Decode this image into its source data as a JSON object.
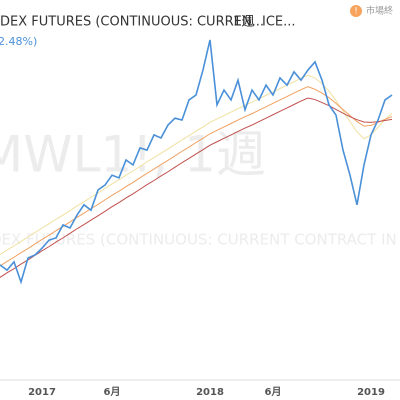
{
  "header": {
    "symbol": "DEX FUTURES (CONTINUOUS: CURREN...",
    "interval": "1週",
    "exchange": "ICE...",
    "change": "2.48%)",
    "status": "市場終"
  },
  "watermark": {
    "ticker": "MWL1!, 1週",
    "description": "DEX FUTURES (CONTINUOUS: CURRENT CONTRACT IN F"
  },
  "chart_data": {
    "type": "line",
    "categories": [
      null,
      null,
      null,
      null,
      null,
      null,
      "2017",
      null,
      null,
      null,
      null,
      null,
      null,
      null,
      null,
      null,
      "6月",
      null,
      null,
      null,
      null,
      null,
      null,
      null,
      null,
      null,
      null,
      null,
      null,
      null,
      "2018",
      null,
      null,
      null,
      null,
      null,
      null,
      null,
      null,
      "6月",
      null,
      null,
      null,
      null,
      null,
      null,
      null,
      null,
      null,
      null,
      null,
      null,
      null,
      "2019",
      null,
      null,
      null
    ],
    "ylim": [
      0,
      100
    ],
    "series": [
      {
        "color": "#f0e0a0",
        "values": [
          33.0,
          34.2,
          35.3,
          36.5,
          37.6,
          38.8,
          40.0,
          41.1,
          42.3,
          43.4,
          44.6,
          45.8,
          46.9,
          48.1,
          49.2,
          50.4,
          51.6,
          52.7,
          53.9,
          55.0,
          56.2,
          57.4,
          58.5,
          59.7,
          60.8,
          62.0,
          63.2,
          64.3,
          65.5,
          66.6,
          67.8,
          68.7,
          69.6,
          70.5,
          71.4,
          72.3,
          73.1,
          74.0,
          74.9,
          75.8,
          76.7,
          77.6,
          78.5,
          79.4,
          80.2,
          79.5,
          78.0,
          76.0,
          73.5,
          70.8,
          68.0,
          65.3,
          63.5,
          64.5,
          66.5,
          68.5,
          70.2
        ]
      },
      {
        "color": "#f0a060",
        "values": [
          30.0,
          31.2,
          32.3,
          33.5,
          34.6,
          35.8,
          37.0,
          38.1,
          39.3,
          40.4,
          41.6,
          42.8,
          43.9,
          45.1,
          46.2,
          47.4,
          48.6,
          49.7,
          50.9,
          52.0,
          53.2,
          54.4,
          55.5,
          56.7,
          57.8,
          59.0,
          60.2,
          61.3,
          62.5,
          63.6,
          64.8,
          65.7,
          66.6,
          67.5,
          68.4,
          69.3,
          70.1,
          71.0,
          71.9,
          72.8,
          73.7,
          74.6,
          75.5,
          76.4,
          77.2,
          76.5,
          75.5,
          74.3,
          72.8,
          71.2,
          69.6,
          68.0,
          66.8,
          67.0,
          67.8,
          68.6,
          69.3
        ]
      },
      {
        "color": "#c0504d",
        "values": [
          27.0,
          28.2,
          29.3,
          30.5,
          31.6,
          32.8,
          34.0,
          35.1,
          36.3,
          37.4,
          38.6,
          39.8,
          40.9,
          42.1,
          43.2,
          44.4,
          45.6,
          46.7,
          47.9,
          49.0,
          50.2,
          51.4,
          52.5,
          53.7,
          54.8,
          56.0,
          57.2,
          58.3,
          59.5,
          60.6,
          61.8,
          62.7,
          63.6,
          64.5,
          65.4,
          66.3,
          67.1,
          68.0,
          68.9,
          69.8,
          70.7,
          71.6,
          72.5,
          73.4,
          74.2,
          73.8,
          73.0,
          72.2,
          71.2,
          70.2,
          69.3,
          68.5,
          67.9,
          67.8,
          68.0,
          68.3,
          68.6
        ]
      },
      {
        "color": "#4a90d9",
        "values": [
          30.3,
          28.9,
          31.1,
          25.8,
          32.1,
          32.9,
          34.7,
          36.8,
          37.4,
          40.8,
          40.0,
          43.4,
          46.1,
          44.7,
          50.0,
          51.3,
          53.9,
          53.2,
          57.9,
          56.6,
          61.1,
          60.5,
          64.5,
          63.7,
          67.1,
          68.9,
          68.4,
          73.7,
          75.0,
          81.6,
          89.5,
          72.4,
          76.3,
          73.7,
          78.9,
          71.1,
          76.3,
          73.7,
          77.6,
          75.0,
          79.5,
          77.6,
          81.1,
          78.9,
          81.6,
          83.7,
          78.9,
          72.4,
          69.7,
          60.5,
          53.9,
          46.1,
          56.6,
          64.5,
          68.4,
          73.7,
          75.0
        ]
      }
    ]
  }
}
